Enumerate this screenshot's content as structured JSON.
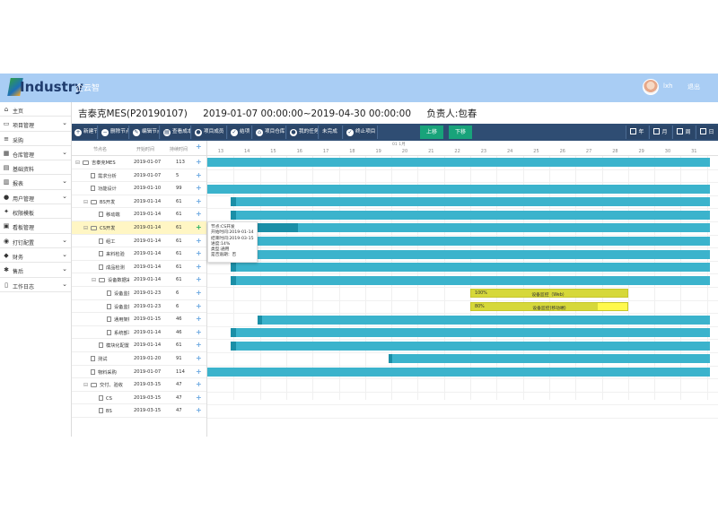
{
  "header": {
    "logo_text": "Industry",
    "brand": "企云智",
    "username": "lxh",
    "logout": "退出"
  },
  "sidebar": {
    "items": [
      {
        "label": "主页",
        "icon": "home-icon",
        "glyph": "⌂",
        "has_children": false
      },
      {
        "label": "项目管理",
        "icon": "monitor-icon",
        "glyph": "▭",
        "has_children": true
      },
      {
        "label": "采购",
        "icon": "list-icon",
        "glyph": "≡",
        "has_children": false
      },
      {
        "label": "仓库管理",
        "icon": "warehouse-icon",
        "glyph": "▦",
        "has_children": true
      },
      {
        "label": "基础资料",
        "icon": "database-icon",
        "glyph": "▤",
        "has_children": false
      },
      {
        "label": "报表",
        "icon": "report-icon",
        "glyph": "▥",
        "has_children": true
      },
      {
        "label": "用户管理",
        "icon": "user-icon",
        "glyph": "●",
        "has_children": true
      },
      {
        "label": "权限模板",
        "icon": "key-icon",
        "glyph": "✦",
        "has_children": false
      },
      {
        "label": "看板管理",
        "icon": "board-icon",
        "glyph": "▣",
        "has_children": false
      },
      {
        "label": "打钉配置",
        "icon": "settings-icon",
        "glyph": "◉",
        "has_children": true
      },
      {
        "label": "财务",
        "icon": "finance-icon",
        "glyph": "◆",
        "has_children": true
      },
      {
        "label": "售后",
        "icon": "service-icon",
        "glyph": "✱",
        "has_children": true
      },
      {
        "label": "工作日志",
        "icon": "log-icon",
        "glyph": "▯",
        "has_children": true
      }
    ]
  },
  "project": {
    "name": "吉泰克MES(P20190107)",
    "range": "2019-01-07 00:00:00~2019-04-30 00:00:00",
    "owner": "负责人:包春"
  },
  "toolbar": {
    "buttons": [
      {
        "label": "新建节点",
        "glyph": "+"
      },
      {
        "label": "删除节点",
        "glyph": "−"
      },
      {
        "label": "编辑节点",
        "glyph": "✎"
      },
      {
        "label": "查看成本",
        "glyph": "▤"
      },
      {
        "label": "项目成员",
        "glyph": "●"
      },
      {
        "label": "结项",
        "glyph": "✓"
      },
      {
        "label": "项目仓库",
        "glyph": "⌂"
      },
      {
        "label": "我的任务",
        "glyph": "●"
      },
      {
        "label": "未完成",
        "glyph": ""
      },
      {
        "label": "终止项目",
        "glyph": "✓"
      }
    ],
    "move_up": "上移",
    "move_down": "下移",
    "views": [
      "年",
      "月",
      "周",
      "日"
    ]
  },
  "grid": {
    "col_name": "节点名",
    "col_start": "开始时间",
    "col_duration": "持续时间",
    "rows": [
      {
        "name": "吉泰克MES",
        "toggle": "⊟",
        "kind": "folder",
        "indent": 0,
        "start": "2019-01-07",
        "duration": "113"
      },
      {
        "name": "需求分析",
        "toggle": "",
        "kind": "file",
        "indent": 1,
        "start": "2019-01-07",
        "duration": "5"
      },
      {
        "name": "功能设计",
        "toggle": "",
        "kind": "file",
        "indent": 1,
        "start": "2019-01-10",
        "duration": "99"
      },
      {
        "name": "BS开发",
        "toggle": "⊟",
        "kind": "folder",
        "indent": 1,
        "start": "2019-01-14",
        "duration": "61"
      },
      {
        "name": "移动端",
        "toggle": "",
        "kind": "file",
        "indent": 2,
        "start": "2019-01-14",
        "duration": "61"
      },
      {
        "name": "CS开发",
        "toggle": "⊟",
        "kind": "folder",
        "indent": 1,
        "start": "2019-01-14",
        "duration": "61",
        "selected": true
      },
      {
        "name": "组工",
        "toggle": "",
        "kind": "file",
        "indent": 2,
        "start": "2019-01-14",
        "duration": "61"
      },
      {
        "name": "来料检验",
        "toggle": "",
        "kind": "file",
        "indent": 2,
        "start": "2019-01-14",
        "duration": "61"
      },
      {
        "name": "成品检测",
        "toggle": "",
        "kind": "file",
        "indent": 2,
        "start": "2019-01-14",
        "duration": "61"
      },
      {
        "name": "设备数据采集",
        "toggle": "⊟",
        "kind": "folder",
        "indent": 2,
        "start": "2019-01-14",
        "duration": "61"
      },
      {
        "name": "设备监控（W",
        "toggle": "",
        "kind": "file",
        "indent": 3,
        "start": "2019-01-23",
        "duration": "6"
      },
      {
        "name": "设备监控(移动",
        "toggle": "",
        "kind": "file",
        "indent": 3,
        "start": "2019-01-23",
        "duration": "6"
      },
      {
        "name": "通用架构搭建",
        "toggle": "",
        "kind": "file",
        "indent": 3,
        "start": "2019-01-15",
        "duration": "46"
      },
      {
        "name": "系统部署、试",
        "toggle": "",
        "kind": "file",
        "indent": 3,
        "start": "2019-01-14",
        "duration": "46"
      },
      {
        "name": "模块化配置操作",
        "toggle": "",
        "kind": "file",
        "indent": 2,
        "start": "2019-01-14",
        "duration": "61"
      },
      {
        "name": "测试",
        "toggle": "",
        "kind": "file",
        "indent": 1,
        "start": "2019-01-20",
        "duration": "91"
      },
      {
        "name": "物料采购",
        "toggle": "",
        "kind": "file",
        "indent": 1,
        "start": "2019-01-07",
        "duration": "114"
      },
      {
        "name": "交付、验收",
        "toggle": "⊟",
        "kind": "folder",
        "indent": 1,
        "start": "2019-03-15",
        "duration": "47"
      },
      {
        "name": "CS",
        "toggle": "",
        "kind": "file",
        "indent": 2,
        "start": "2019-03-15",
        "duration": "47"
      },
      {
        "name": "BS",
        "toggle": "",
        "kind": "file",
        "indent": 2,
        "start": "2019-03-15",
        "duration": "47"
      }
    ]
  },
  "gantt": {
    "month_label": "01 1月",
    "days": [
      "13",
      "14",
      "15",
      "16",
      "17",
      "18",
      "19",
      "20",
      "21",
      "22",
      "23",
      "24",
      "25",
      "26",
      "27",
      "28",
      "29",
      "30",
      "31"
    ],
    "first_day": 13,
    "bars": [
      {
        "row": 0,
        "start": 12.0,
        "end": 31.6,
        "progress": 0
      },
      {
        "row": 2,
        "start": 12.0,
        "end": 31.6,
        "progress": 0
      },
      {
        "row": 3,
        "start": 13.4,
        "end": 31.6,
        "progress": 0.01
      },
      {
        "row": 4,
        "start": 13.4,
        "end": 31.6,
        "progress": 0.01
      },
      {
        "row": 5,
        "start": 13.4,
        "end": 31.6,
        "progress": 0.14,
        "pct": "14%"
      },
      {
        "row": 6,
        "start": 13.4,
        "end": 31.6,
        "progress": 0.01
      },
      {
        "row": 7,
        "start": 13.4,
        "end": 31.6,
        "progress": 0.01
      },
      {
        "row": 8,
        "start": 13.4,
        "end": 31.6,
        "progress": 0.01
      },
      {
        "row": 9,
        "start": 13.4,
        "end": 31.6,
        "progress": 0.01
      },
      {
        "row": 10,
        "start": 22.5,
        "end": 28.5,
        "progress": 1.0,
        "pct": "100%",
        "label": "设备监控（Web）",
        "style": "yellow"
      },
      {
        "row": 11,
        "start": 22.5,
        "end": 28.5,
        "progress": 0.8,
        "pct": "80%",
        "label": "设备监控(移动端)",
        "style": "yellow"
      },
      {
        "row": 12,
        "start": 14.4,
        "end": 31.6,
        "progress": 0.01
      },
      {
        "row": 13,
        "start": 13.4,
        "end": 31.6,
        "progress": 0.01
      },
      {
        "row": 14,
        "start": 13.4,
        "end": 31.6,
        "progress": 0.01
      },
      {
        "row": 15,
        "start": 19.4,
        "end": 31.6,
        "progress": 0.01
      },
      {
        "row": 16,
        "start": 12.0,
        "end": 31.6,
        "progress": 0
      }
    ],
    "tooltip": {
      "lines": [
        "节点:CS开发",
        "开始时间:2019-01-14",
        "结束时间:2019-03-15",
        "进度:14%",
        "类型:通用",
        "是否逾期：否"
      ]
    }
  },
  "colors": {
    "header": "#a9cdf4",
    "toolbar": "#2f4d73",
    "bar": "#3bb3cc",
    "bar_progress": "#1b8fa7",
    "green_button": "#18a37a",
    "selected_row": "#fff6c4"
  }
}
